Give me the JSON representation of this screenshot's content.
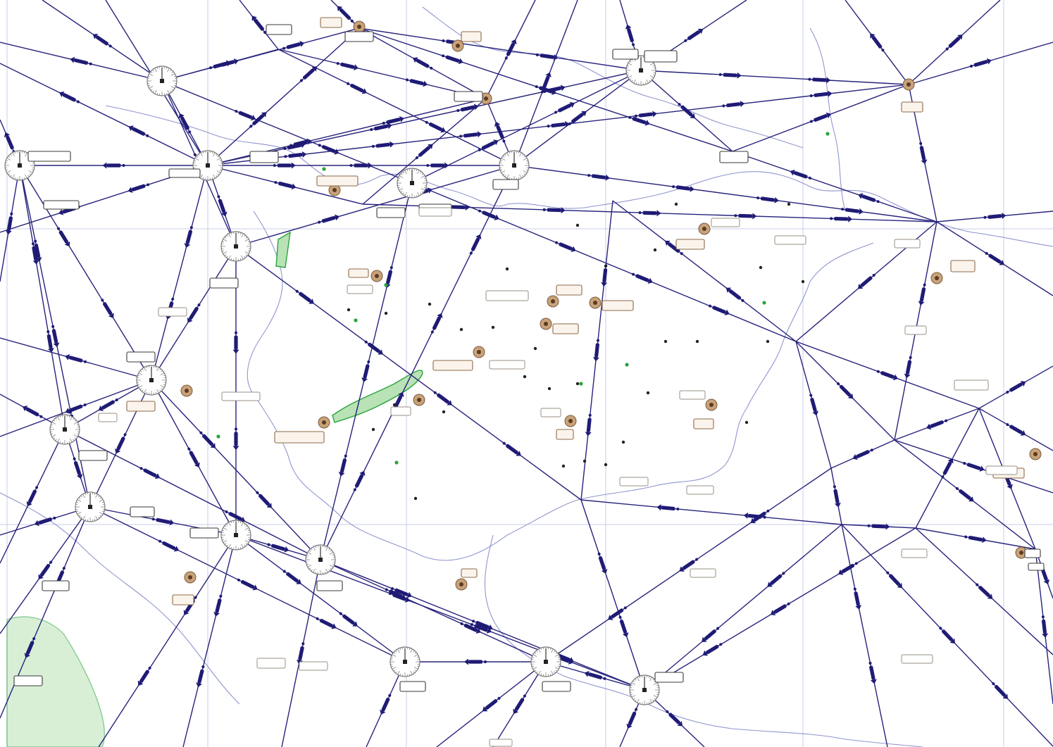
{
  "map": {
    "kind": "enroute aeronautical chart",
    "colors": {
      "background": "#ffffff",
      "route": "#27237c",
      "border": "#8f96cf",
      "grid": "#c9cce8",
      "airport": "#c9a27a",
      "green_area": "#b9e2b6",
      "green_stroke": "#2aa43a"
    },
    "icons": [
      "vor-compass-rose",
      "airport-symbol",
      "route-direction-arrow",
      "reporting-point",
      "green-restricted-area"
    ]
  }
}
